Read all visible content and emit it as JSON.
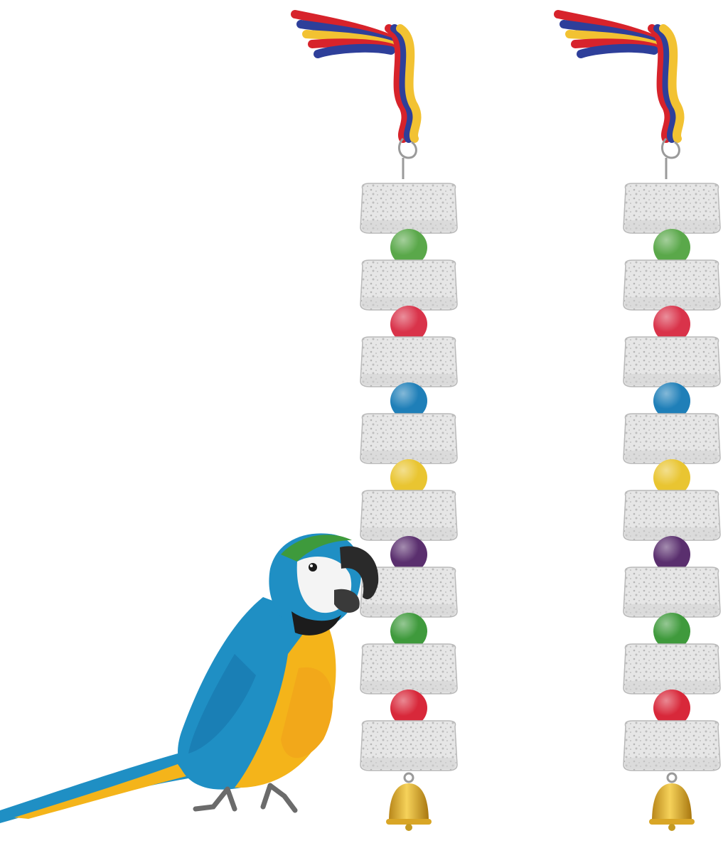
{
  "scene": {
    "background": "#ffffff",
    "colors": {
      "rope_red": "#d7232b",
      "rope_blue": "#2e3f9a",
      "rope_yellow": "#f2c232",
      "pumice": "#e3e3e3",
      "pumice_shadow": "#b9b9b9",
      "bell_gold": "#d9a626",
      "macaw_blue": "#1f8fc4",
      "macaw_yellow": "#f4b41a",
      "macaw_green_crown": "#3e9a3c"
    },
    "toys": [
      {
        "icon": "pumice-chew-toy-icon",
        "beads": [
          "#5aa84a",
          "#d9334a",
          "#1f7fb8",
          "#e9c531",
          "#5a2f6e",
          "#3f9a3c",
          "#d8283a"
        ]
      },
      {
        "icon": "pumice-chew-toy-icon",
        "beads": [
          "#5aa84a",
          "#d9334a",
          "#1f7fb8",
          "#e9c531",
          "#5a2f6e",
          "#3f9a3c",
          "#d8283a"
        ]
      }
    ],
    "parrot": {
      "icon": "blue-and-gold-macaw-icon"
    }
  }
}
